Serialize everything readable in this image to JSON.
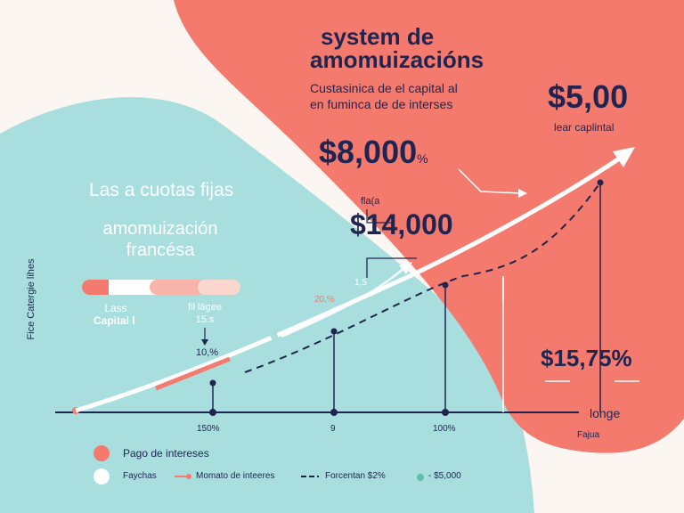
{
  "colors": {
    "coral": "#f47a6e",
    "teal": "#a8dede",
    "navy": "#1f2550",
    "white": "#ffffff",
    "cream": "#fcf6f2"
  },
  "header": {
    "title_line1": "system de",
    "title_line2": "amomuizacións",
    "subtitle_line1": "Custasinica de el capital al",
    "subtitle_line2": "en fuminca de de interses"
  },
  "values": {
    "top_right_value": "$5,00",
    "top_right_caption": "lear caplintal",
    "mid_value": "$8,000",
    "mid_value_suffix": "%",
    "arrow_label": "fla(a",
    "center_value": "$14,000",
    "bottom_right_value": "$15,75%"
  },
  "left_panel": {
    "heading": "Las a cuotas fijas",
    "subheading_line1": "amomuización",
    "subheading_line2": "francésa",
    "vertical_label": "Fice Catergie lihes",
    "bar_label_left_line1": "Lass",
    "bar_label_left_line2": "Capital l",
    "bar_label_right_line1": "fil lágee",
    "bar_label_right_line2": "15.s",
    "small_percent": "10,%"
  },
  "chart_labels": {
    "marker_1_5": "1,5",
    "marker_20": "20,%",
    "x_tick_1": "150%",
    "x_tick_2": "9",
    "x_tick_3": "100%",
    "x_end_label": "longe",
    "x_end_sub": "Fajua"
  },
  "legend": {
    "item1": "Pago de intereses",
    "item2": "Faychas",
    "item3": "Momato de inteeres",
    "item4": "Forcentan $2%",
    "item5": "- $5,000"
  },
  "chart_data": {
    "type": "line",
    "x_tick_labels": [
      "150%",
      "9",
      "100%"
    ],
    "series": [],
    "xlabel": "longe",
    "ylabel": "Fice Catergie lihes"
  }
}
